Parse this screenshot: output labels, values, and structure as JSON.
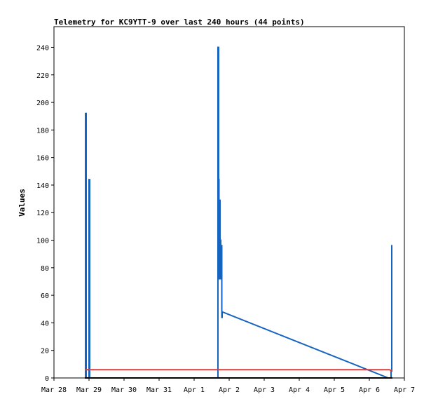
{
  "chart_data": {
    "type": "line",
    "title": "Telemetry for KC9YTT-9 over last 240 hours (44 points)",
    "xlabel": "",
    "ylabel": "Values",
    "ylim": [
      0,
      255
    ],
    "yticks": [
      0,
      20,
      40,
      60,
      80,
      100,
      120,
      140,
      160,
      180,
      200,
      220,
      240
    ],
    "xlim": [
      0,
      10
    ],
    "xtick_labels": [
      "Mar 28",
      "Mar 29",
      "Mar 30",
      "Mar 31",
      "Apr 1",
      "Apr 2",
      "Apr 3",
      "Apr 4",
      "Apr 5",
      "Apr 6",
      "Apr 7"
    ],
    "grid": false,
    "legend": "none",
    "series": [
      {
        "color": "#1565c0",
        "x": [
          0.9,
          0.9,
          0.92,
          0.92,
          1.0,
          1.0,
          1.02,
          1.02,
          4.68,
          4.68,
          4.7,
          4.7,
          4.71,
          4.71,
          4.73,
          4.73,
          4.74,
          4.74,
          4.76,
          4.76,
          4.77,
          4.77,
          4.79,
          4.79,
          4.8,
          4.8,
          9.54,
          9.62,
          9.62,
          9.64,
          9.64,
          9.66
        ],
        "y": [
          0,
          192,
          192,
          0,
          0,
          144,
          144,
          0,
          0,
          240,
          240,
          144,
          144,
          72,
          72,
          129,
          129,
          100,
          100,
          72,
          72,
          96,
          96,
          44,
          44,
          48,
          0,
          0,
          5,
          5,
          96,
          96
        ]
      },
      {
        "color": "#e53935",
        "x": [
          0.88,
          9.58,
          9.64
        ],
        "y": [
          6,
          6,
          5
        ]
      },
      {
        "color": "#000000",
        "x": [
          0.88,
          9.66
        ],
        "y": [
          0,
          0
        ]
      }
    ]
  }
}
